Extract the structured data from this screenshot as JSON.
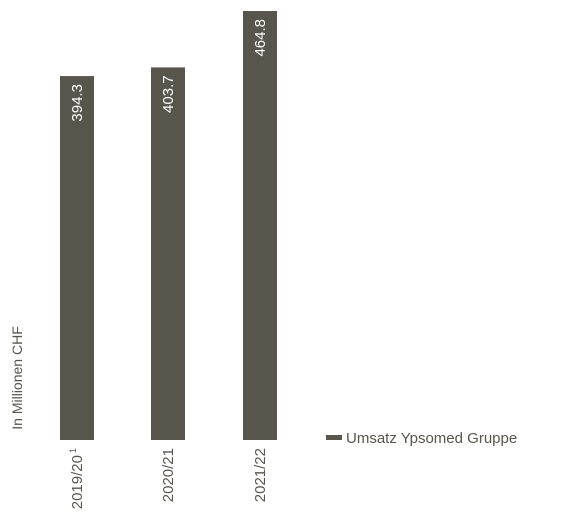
{
  "chart_data": {
    "type": "bar",
    "orientation": "vertical",
    "title": "",
    "ylabel": "In Millionen CHF",
    "xlabel": "",
    "categories": [
      "2019/20",
      "2020/21",
      "2021/22"
    ],
    "category_footnotes": [
      "1",
      "",
      ""
    ],
    "series": [
      {
        "name": "Umsatz Ypsomed Gruppe",
        "values": [
          394.3,
          403.7,
          464.8
        ],
        "value_labels": [
          "394.3",
          "403.7",
          "464.8"
        ],
        "color": "#58554c"
      }
    ],
    "ylim": [
      0,
      464.8
    ],
    "grid": false,
    "legend": "right",
    "data_labels": "inside-top-rotated"
  },
  "colors": {
    "bar": "#58554c",
    "label_on_bar": "#ffffff",
    "text": "#58554c",
    "background": "#ffffff"
  }
}
